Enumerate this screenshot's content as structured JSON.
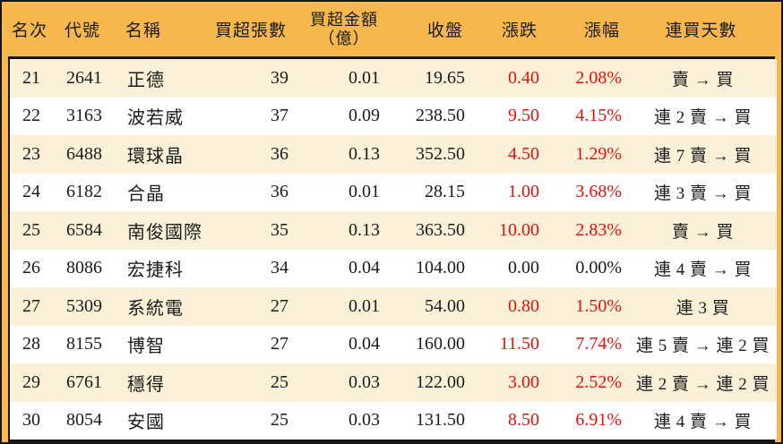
{
  "colors": {
    "header_bg": "#f6b84c",
    "stripe_bg": "#fbf1d8",
    "row_bg": "#ffffff",
    "up_red": "#e8100c",
    "text": "#1b1b1b"
  },
  "table": {
    "columns": [
      {
        "label": "名次"
      },
      {
        "label": "代號"
      },
      {
        "label": "名稱"
      },
      {
        "label": "買超張數"
      },
      {
        "label": "買超金額",
        "label2": "（億）"
      },
      {
        "label": "收盤"
      },
      {
        "label": "漲跌"
      },
      {
        "label": "漲幅"
      },
      {
        "label": "連買天數"
      }
    ],
    "rows": [
      {
        "rank": "21",
        "code": "2641",
        "name": "正德",
        "volume": "39",
        "amount": "0.01",
        "close": "19.65",
        "change": "0.40",
        "change_pct": "2.08%",
        "streak": "賣 → 買",
        "change_color": "red"
      },
      {
        "rank": "22",
        "code": "3163",
        "name": "波若威",
        "volume": "37",
        "amount": "0.09",
        "close": "238.50",
        "change": "9.50",
        "change_pct": "4.15%",
        "streak": "連 2 賣 → 買",
        "change_color": "red"
      },
      {
        "rank": "23",
        "code": "6488",
        "name": "環球晶",
        "volume": "36",
        "amount": "0.13",
        "close": "352.50",
        "change": "4.50",
        "change_pct": "1.29%",
        "streak": "連 7 賣 → 買",
        "change_color": "red"
      },
      {
        "rank": "24",
        "code": "6182",
        "name": "合晶",
        "volume": "36",
        "amount": "0.01",
        "close": "28.15",
        "change": "1.00",
        "change_pct": "3.68%",
        "streak": "連 3 賣 → 買",
        "change_color": "red"
      },
      {
        "rank": "25",
        "code": "6584",
        "name": "南俊國際",
        "volume": "35",
        "amount": "0.13",
        "close": "363.50",
        "change": "10.00",
        "change_pct": "2.83%",
        "streak": "賣 → 買",
        "change_color": "red"
      },
      {
        "rank": "26",
        "code": "8086",
        "name": "宏捷科",
        "volume": "34",
        "amount": "0.04",
        "close": "104.00",
        "change": "0.00",
        "change_pct": "0.00%",
        "streak": "連 4 賣 → 買",
        "change_color": "black"
      },
      {
        "rank": "27",
        "code": "5309",
        "name": "系統電",
        "volume": "27",
        "amount": "0.01",
        "close": "54.00",
        "change": "0.80",
        "change_pct": "1.50%",
        "streak": "連 3 買",
        "change_color": "red"
      },
      {
        "rank": "28",
        "code": "8155",
        "name": "博智",
        "volume": "27",
        "amount": "0.04",
        "close": "160.00",
        "change": "11.50",
        "change_pct": "7.74%",
        "streak": "連 5 賣 → 連 2 買",
        "change_color": "red"
      },
      {
        "rank": "29",
        "code": "6761",
        "name": "穩得",
        "volume": "25",
        "amount": "0.03",
        "close": "122.00",
        "change": "3.00",
        "change_pct": "2.52%",
        "streak": "連 2 賣 → 連 2 買",
        "change_color": "red"
      },
      {
        "rank": "30",
        "code": "8054",
        "name": "安國",
        "volume": "25",
        "amount": "0.03",
        "close": "131.50",
        "change": "8.50",
        "change_pct": "6.91%",
        "streak": "連 4 賣 → 買",
        "change_color": "red"
      }
    ]
  }
}
